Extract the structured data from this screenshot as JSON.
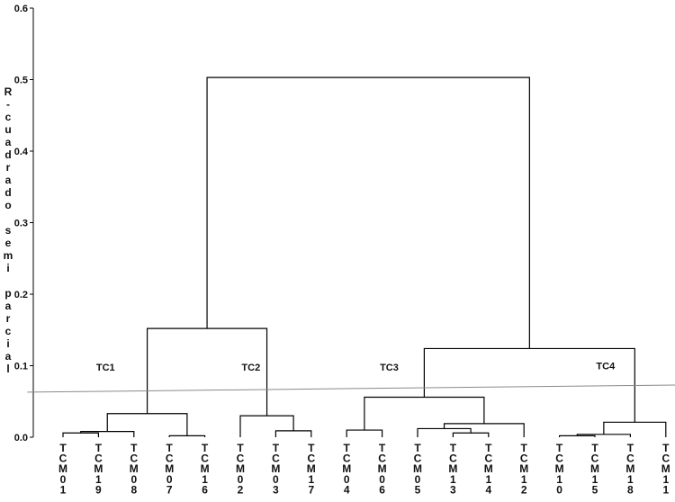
{
  "chart_data": {
    "type": "dendrogram",
    "ylabel": "R-cuadrado semi parcial",
    "ylim": [
      0,
      0.6
    ],
    "yticks": [
      "0.0",
      "0.1",
      "0.2",
      "0.3",
      "0.4",
      "0.5",
      "0.6"
    ],
    "leaves": [
      "TCM01",
      "TCM19",
      "TCM08",
      "TCM07",
      "TCM16",
      "TCM02",
      "TCM03",
      "TCM17",
      "TCM04",
      "TCM06",
      "TCM05",
      "TCM13",
      "TCM14",
      "TCM12",
      "TCM10",
      "TCM15",
      "TCM18",
      "TCM11"
    ],
    "merges": [
      {
        "id": "m1",
        "left": "TCM01",
        "right": "TCM19",
        "height": 0.006
      },
      {
        "id": "m2",
        "left": "m1",
        "right": "TCM08",
        "height": 0.008
      },
      {
        "id": "m3",
        "left": "TCM07",
        "right": "TCM16",
        "height": 0.002
      },
      {
        "id": "m4",
        "left": "m2",
        "right": "m3",
        "height": 0.033
      },
      {
        "id": "m5",
        "left": "TCM03",
        "right": "TCM17",
        "height": 0.009
      },
      {
        "id": "m6",
        "left": "TCM02",
        "right": "m5",
        "height": 0.03
      },
      {
        "id": "m7",
        "left": "m4",
        "right": "m6",
        "height": 0.152
      },
      {
        "id": "m8",
        "left": "TCM04",
        "right": "TCM06",
        "height": 0.01
      },
      {
        "id": "m9",
        "left": "TCM13",
        "right": "TCM14",
        "height": 0.006
      },
      {
        "id": "m10",
        "left": "TCM05",
        "right": "m9",
        "height": 0.012
      },
      {
        "id": "m11",
        "left": "m10",
        "right": "TCM12",
        "height": 0.019
      },
      {
        "id": "m12",
        "left": "m8",
        "right": "m11",
        "height": 0.056
      },
      {
        "id": "m13",
        "left": "TCM10",
        "right": "TCM15",
        "height": 0.002
      },
      {
        "id": "m14",
        "left": "m13",
        "right": "TCM18",
        "height": 0.004
      },
      {
        "id": "m15",
        "left": "m14",
        "right": "TCM11",
        "height": 0.021
      },
      {
        "id": "m16",
        "left": "m12",
        "right": "m15",
        "height": 0.124
      },
      {
        "id": "m17",
        "left": "m7",
        "right": "m16",
        "height": 0.503
      }
    ],
    "cut_line": {
      "from": [
        0.5,
        0.063
      ],
      "to": [
        18.5,
        0.073
      ]
    },
    "cluster_labels": [
      {
        "text": "TC1",
        "x": 2.2,
        "y": 0.093
      },
      {
        "text": "TC2",
        "x": 6.3,
        "y": 0.093
      },
      {
        "text": "TC3",
        "x": 10.2,
        "y": 0.093
      },
      {
        "text": "TC4",
        "x": 16.3,
        "y": 0.095
      }
    ]
  }
}
